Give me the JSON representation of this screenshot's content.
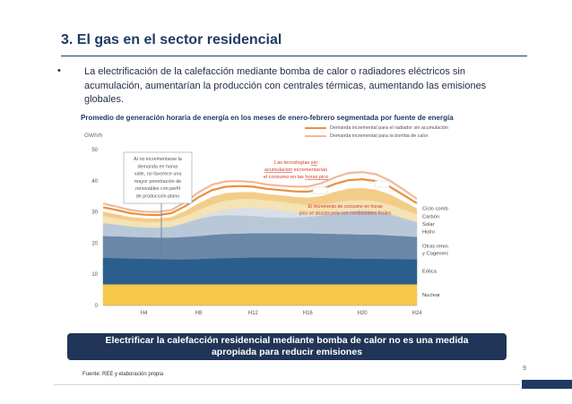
{
  "slide": {
    "title": "3. El gas en el sector residencial",
    "bullet": "La electrificación de la calefacción mediante bomba de calor o radiadores eléctricos sin acumulación, aumentarían la producción con centrales térmicas, aumentando las emisiones globales.",
    "bullet_marker": "•",
    "banner_line1": "Electrificar la calefacción residencial mediante bomba de calor no es una medida",
    "banner_line2": "apropiada para reducir emisiones",
    "source": "Fuente: REE y elaboración propia",
    "page_number": "9"
  },
  "chart_data": {
    "type": "area",
    "title": "Promedio de generación horaria de energía en los meses de enero-febrero segmentada por fuente de energía",
    "ylabel": "GWh/h",
    "ylim": [
      0,
      50
    ],
    "yticks": [
      "0",
      "10",
      "20",
      "30",
      "40",
      "50"
    ],
    "x": [
      1,
      2,
      3,
      4,
      5,
      6,
      7,
      8,
      9,
      10,
      11,
      12,
      13,
      14,
      15,
      16,
      17,
      18,
      19,
      20,
      21,
      22,
      23,
      24
    ],
    "xticks": [
      {
        "x": 4,
        "label": "H4"
      },
      {
        "x": 8,
        "label": "H8"
      },
      {
        "x": 12,
        "label": "H12"
      },
      {
        "x": 16,
        "label": "H16"
      },
      {
        "x": 20,
        "label": "H20"
      },
      {
        "x": 24,
        "label": "H24"
      }
    ],
    "series": [
      {
        "name": "Nuclear",
        "color": "#f6c748",
        "values": [
          6.8,
          6.8,
          6.8,
          6.8,
          6.8,
          6.8,
          6.8,
          6.8,
          6.8,
          6.8,
          6.8,
          6.8,
          6.8,
          6.8,
          6.8,
          6.8,
          6.8,
          6.8,
          6.8,
          6.8,
          6.8,
          6.8,
          6.8,
          6.8
        ]
      },
      {
        "name": "Eólica",
        "color": "#2a5e8c",
        "values": [
          8.5,
          8.4,
          8.3,
          8.2,
          8.1,
          8.0,
          8.0,
          8.1,
          8.3,
          8.4,
          8.5,
          8.6,
          8.6,
          8.6,
          8.6,
          8.6,
          8.5,
          8.4,
          8.3,
          8.2,
          8.2,
          8.1,
          8.1,
          8.0
        ]
      },
      {
        "name": "Otras renovables y Cogeneración",
        "color": "#6a87a8",
        "values": [
          7.0,
          7.0,
          6.9,
          6.9,
          6.9,
          7.0,
          7.2,
          7.4,
          7.6,
          7.8,
          7.8,
          7.8,
          7.8,
          7.8,
          7.8,
          7.8,
          7.8,
          7.8,
          7.8,
          7.8,
          7.8,
          7.6,
          7.4,
          7.2
        ]
      },
      {
        "name": "Hidro",
        "color": "#b9c8d8",
        "values": [
          4.2,
          3.8,
          3.4,
          3.2,
          3.2,
          3.5,
          4.5,
          5.5,
          6.0,
          6.0,
          5.8,
          5.6,
          5.2,
          5.0,
          5.0,
          5.2,
          5.8,
          6.8,
          7.4,
          7.6,
          7.4,
          6.8,
          5.8,
          4.8
        ]
      },
      {
        "name": "Solar",
        "color": "#d9dfe6",
        "values": [
          0,
          0,
          0,
          0,
          0,
          0,
          0,
          0.3,
          1.0,
          1.8,
          2.4,
          2.6,
          2.6,
          2.4,
          1.8,
          1.0,
          0.3,
          0,
          0,
          0,
          0,
          0,
          0,
          0
        ]
      },
      {
        "name": "Carbón",
        "color": "#f3e3b5",
        "values": [
          2.2,
          2.0,
          1.8,
          1.8,
          1.8,
          1.9,
          2.2,
          2.6,
          2.8,
          2.9,
          2.9,
          2.9,
          2.8,
          2.8,
          2.8,
          2.9,
          3.1,
          3.3,
          3.4,
          3.4,
          3.3,
          3.1,
          2.8,
          2.5
        ]
      },
      {
        "name": "Ciclo combinado",
        "color": "#f4cc8a",
        "values": [
          1.3,
          1.2,
          1.1,
          1.0,
          1.0,
          1.1,
          1.5,
          2.0,
          2.3,
          2.3,
          2.1,
          2.0,
          1.9,
          1.9,
          2.0,
          2.2,
          2.7,
          3.3,
          3.7,
          3.8,
          3.6,
          3.2,
          2.5,
          1.8
        ]
      }
    ],
    "incremental_demand": [
      {
        "name": "Demanda incremental para el radiador sin acumulación",
        "color": "#e8913f",
        "values": [
          1.5,
          1.4,
          1.3,
          1.2,
          1.2,
          1.3,
          1.6,
          2.0,
          2.2,
          2.1,
          2.0,
          1.8,
          1.7,
          1.7,
          1.8,
          2.0,
          2.3,
          2.6,
          2.8,
          2.9,
          2.8,
          2.5,
          2.1,
          1.7
        ]
      },
      {
        "name": "Demanda incremental para la bomba de calor",
        "color": "#f3b79a",
        "values": [
          1.2,
          1.1,
          1.0,
          1.0,
          1.0,
          1.0,
          1.3,
          1.6,
          1.8,
          1.7,
          1.6,
          1.5,
          1.4,
          1.4,
          1.5,
          1.6,
          1.9,
          2.1,
          2.3,
          2.3,
          2.2,
          2.0,
          1.7,
          1.4
        ]
      }
    ],
    "legend_position": "top-right",
    "grid": false,
    "annotations": [
      {
        "id": "left",
        "text": "Al no incrementarse la demanda en horas valle, no favorece una mayor penetración de renovables con perfil de producción plano"
      },
      {
        "id": "top",
        "text_parts": [
          {
            "t": "Las tecnologías "
          },
          {
            "t": "sin acumulación",
            "u": true
          },
          {
            "t": " incrementarían el consumo en las "
          },
          {
            "t": "horas pico",
            "u": true
          }
        ]
      },
      {
        "id": "mid",
        "text": "El incremento de consumo en horas pico se abastecería con combustibles fósiles"
      }
    ]
  }
}
